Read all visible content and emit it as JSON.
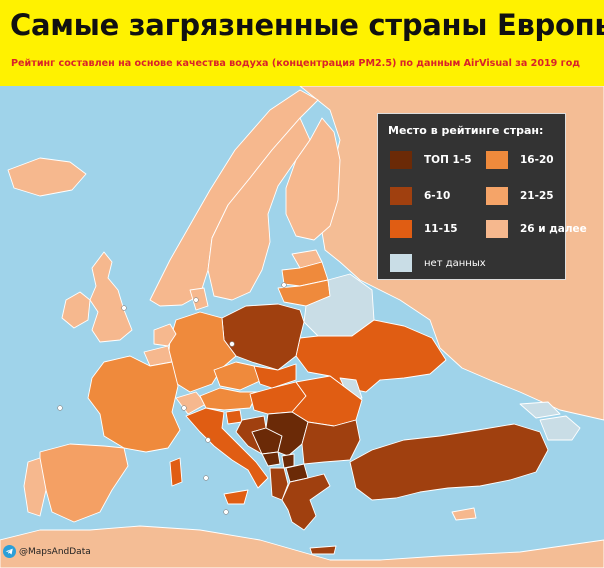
{
  "header": {
    "title": "Самые загрязненные страны Европы",
    "subtitle": "Рейтинг составлен на основе качества водуха (концентрация PM2.5) по данным AirVisual за 2019 год"
  },
  "legend": {
    "title": "Место в рейтинге стран:",
    "items": [
      {
        "label": "ТОП 1-5",
        "color": "#6b2a07"
      },
      {
        "label": "16-20",
        "color": "#ef8a3c"
      },
      {
        "label": "6-10",
        "color": "#a0400f"
      },
      {
        "label": "21-25",
        "color": "#f5a468"
      },
      {
        "label": "11-15",
        "color": "#e05d13"
      },
      {
        "label": "26 и далее",
        "color": "#f6b88e"
      },
      {
        "label": "нет данных",
        "color": "#c9dde6"
      }
    ]
  },
  "colors": {
    "sea": "#9fd3ea",
    "outside": "#f4bd95",
    "no_data": "#c9dde6",
    "accent_title_bg": "#fff200",
    "subtitle_red": "#d8232a"
  },
  "footer": {
    "credit": "@MapsAndData",
    "icon": "telegram-icon"
  }
}
